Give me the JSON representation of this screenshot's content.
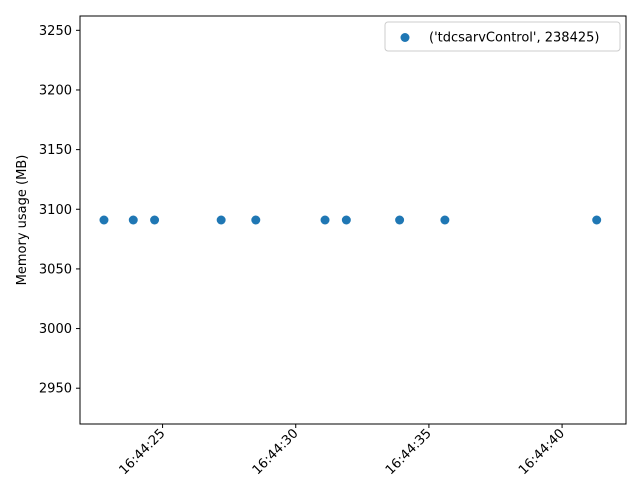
{
  "chart_data": {
    "type": "scatter",
    "title": "",
    "xlabel": "",
    "ylabel": "Memory usage (MB)",
    "x_type": "time",
    "xlim": [
      "16:44:21.9",
      "16:44:42.4"
    ],
    "ylim": [
      2920,
      3262
    ],
    "grid": false,
    "legend_position": "top-right",
    "x_ticks": [
      "16:44:25",
      "16:44:30",
      "16:44:35",
      "16:44:40"
    ],
    "y_ticks": [
      2950,
      3000,
      3050,
      3100,
      3150,
      3200,
      3250
    ],
    "series": [
      {
        "name": "('tdcsarvControl', 238425)",
        "color": "#1f77b4",
        "points": [
          {
            "x": "16:44:22.8",
            "y": 3091
          },
          {
            "x": "16:44:23.9",
            "y": 3091
          },
          {
            "x": "16:44:24.7",
            "y": 3091
          },
          {
            "x": "16:44:27.2",
            "y": 3091
          },
          {
            "x": "16:44:28.5",
            "y": 3091
          },
          {
            "x": "16:44:31.1",
            "y": 3091
          },
          {
            "x": "16:44:31.9",
            "y": 3091
          },
          {
            "x": "16:44:33.9",
            "y": 3091
          },
          {
            "x": "16:44:35.6",
            "y": 3091
          },
          {
            "x": "16:44:41.3",
            "y": 3091
          }
        ]
      }
    ]
  }
}
